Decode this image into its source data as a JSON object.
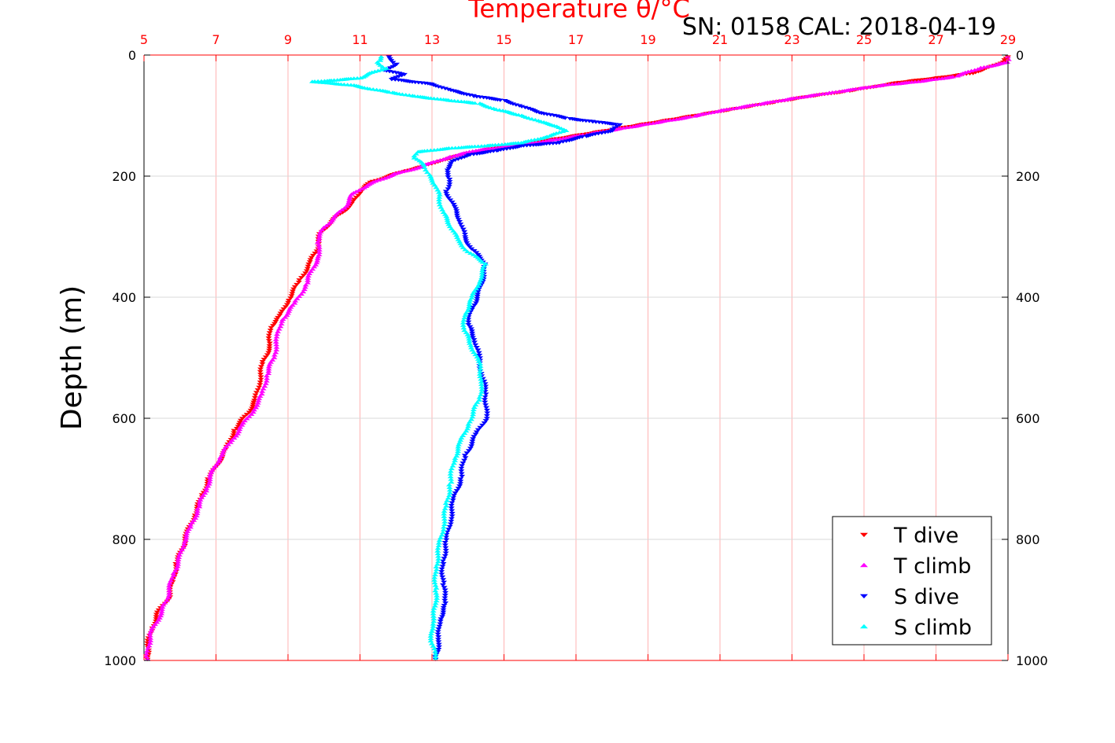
{
  "chart_data": {
    "type": "scatter",
    "title": "Temperature θ/°C",
    "subtitle": "SN: 0158  CAL: 2018-04-19",
    "xlabel": "",
    "ylabel": "Depth (m)",
    "xlim": [
      5,
      29
    ],
    "ylim": [
      0,
      1000
    ],
    "y_reversed": true,
    "x_axis_position": "top",
    "right_axis": true,
    "grid": true,
    "legend_position": "bottom-right",
    "xticks": [
      "5",
      "7",
      "9",
      "11",
      "13",
      "15",
      "17",
      "19",
      "21",
      "23",
      "25",
      "27",
      "29"
    ],
    "yticks": [
      "0",
      "200",
      "400",
      "600",
      "800",
      "1000"
    ],
    "colors": {
      "axis": "#ff0000",
      "grid_x": "#ffb3b3",
      "grid_y": "#d9d9d9"
    },
    "series": [
      {
        "name": "T dive",
        "color": "#ff0000",
        "marker": "triangle-down",
        "points": [
          [
            29.0,
            3
          ],
          [
            28.9,
            10
          ],
          [
            28.5,
            20
          ],
          [
            28.0,
            30
          ],
          [
            27.0,
            38
          ],
          [
            26.0,
            45
          ],
          [
            25.3,
            52
          ],
          [
            24.5,
            60
          ],
          [
            23.5,
            68
          ],
          [
            22.5,
            78
          ],
          [
            21.5,
            88
          ],
          [
            20.5,
            98
          ],
          [
            19.5,
            108
          ],
          [
            18.5,
            118
          ],
          [
            17.5,
            128
          ],
          [
            16.5,
            138
          ],
          [
            15.5,
            148
          ],
          [
            14.5,
            156
          ],
          [
            13.8,
            165
          ],
          [
            13.2,
            175
          ],
          [
            12.7,
            185
          ],
          [
            12.2,
            192
          ],
          [
            11.8,
            200
          ],
          [
            11.3,
            210
          ],
          [
            11.0,
            225
          ],
          [
            10.8,
            245
          ],
          [
            10.5,
            260
          ],
          [
            10.2,
            275
          ],
          [
            9.9,
            295
          ],
          [
            9.8,
            320
          ],
          [
            9.6,
            345
          ],
          [
            9.3,
            375
          ],
          [
            9.0,
            405
          ],
          [
            8.8,
            430
          ],
          [
            8.5,
            450
          ],
          [
            8.5,
            480
          ],
          [
            8.3,
            510
          ],
          [
            8.2,
            540
          ],
          [
            8.1,
            570
          ],
          [
            7.9,
            590
          ],
          [
            7.5,
            620
          ],
          [
            7.3,
            650
          ],
          [
            7.1,
            670
          ],
          [
            6.8,
            700
          ],
          [
            6.6,
            730
          ],
          [
            6.4,
            760
          ],
          [
            6.2,
            790
          ],
          [
            6.1,
            810
          ],
          [
            5.9,
            840
          ],
          [
            5.8,
            870
          ],
          [
            5.7,
            895
          ],
          [
            5.4,
            920
          ],
          [
            5.2,
            950
          ],
          [
            5.1,
            975
          ],
          [
            5.1,
            998
          ]
        ]
      },
      {
        "name": "T climb",
        "color": "#ff00ff",
        "marker": "triangle-up",
        "points": [
          [
            29.0,
            3
          ],
          [
            29.0,
            12
          ],
          [
            28.2,
            22
          ],
          [
            27.5,
            36
          ],
          [
            26.5,
            44
          ],
          [
            25.5,
            50
          ],
          [
            24.8,
            56
          ],
          [
            24.0,
            63
          ],
          [
            23.0,
            72
          ],
          [
            22.0,
            82
          ],
          [
            21.0,
            92
          ],
          [
            20.2,
            102
          ],
          [
            19.2,
            112
          ],
          [
            18.2,
            122
          ],
          [
            17.2,
            132
          ],
          [
            16.2,
            142
          ],
          [
            15.2,
            150
          ],
          [
            14.2,
            158
          ],
          [
            13.5,
            168
          ],
          [
            13.0,
            178
          ],
          [
            12.5,
            188
          ],
          [
            12.0,
            196
          ],
          [
            11.6,
            205
          ],
          [
            11.2,
            215
          ],
          [
            10.8,
            230
          ],
          [
            10.6,
            250
          ],
          [
            10.3,
            268
          ],
          [
            10.0,
            285
          ],
          [
            9.8,
            310
          ],
          [
            9.9,
            330
          ],
          [
            9.7,
            350
          ],
          [
            9.5,
            380
          ],
          [
            9.2,
            410
          ],
          [
            8.8,
            440
          ],
          [
            8.7,
            470
          ],
          [
            8.6,
            500
          ],
          [
            8.4,
            530
          ],
          [
            8.3,
            560
          ],
          [
            8.0,
            590
          ],
          [
            7.7,
            615
          ],
          [
            7.4,
            640
          ],
          [
            7.1,
            665
          ],
          [
            6.9,
            690
          ],
          [
            6.7,
            720
          ],
          [
            6.5,
            750
          ],
          [
            6.3,
            780
          ],
          [
            6.1,
            805
          ],
          [
            6.0,
            830
          ],
          [
            5.8,
            860
          ],
          [
            5.7,
            885
          ],
          [
            5.6,
            905
          ],
          [
            5.4,
            930
          ],
          [
            5.2,
            955
          ],
          [
            5.1,
            980
          ],
          [
            5.1,
            998
          ]
        ]
      },
      {
        "name": "S dive",
        "color": "#0000ff",
        "marker": "triangle-down",
        "points": [
          [
            11.8,
            3
          ],
          [
            12.0,
            15
          ],
          [
            11.7,
            25
          ],
          [
            12.2,
            32
          ],
          [
            11.9,
            40
          ],
          [
            13.0,
            48
          ],
          [
            13.5,
            58
          ],
          [
            14.2,
            68
          ],
          [
            15.0,
            75
          ],
          [
            15.5,
            85
          ],
          [
            16.0,
            95
          ],
          [
            16.8,
            105
          ],
          [
            17.5,
            110
          ],
          [
            18.2,
            115
          ],
          [
            18.0,
            125
          ],
          [
            17.2,
            135
          ],
          [
            16.5,
            145
          ],
          [
            15.5,
            150
          ],
          [
            14.8,
            158
          ],
          [
            14.0,
            165
          ],
          [
            13.6,
            175
          ],
          [
            13.4,
            190
          ],
          [
            13.5,
            205
          ],
          [
            13.4,
            225
          ],
          [
            13.6,
            250
          ],
          [
            13.8,
            275
          ],
          [
            13.9,
            300
          ],
          [
            14.1,
            320
          ],
          [
            14.5,
            345
          ],
          [
            14.4,
            370
          ],
          [
            14.3,
            395
          ],
          [
            14.1,
            420
          ],
          [
            14.0,
            445
          ],
          [
            14.2,
            470
          ],
          [
            14.3,
            500
          ],
          [
            14.4,
            530
          ],
          [
            14.5,
            560
          ],
          [
            14.5,
            600
          ],
          [
            14.2,
            630
          ],
          [
            13.9,
            665
          ],
          [
            13.8,
            700
          ],
          [
            13.6,
            735
          ],
          [
            13.5,
            770
          ],
          [
            13.4,
            805
          ],
          [
            13.3,
            840
          ],
          [
            13.3,
            875
          ],
          [
            13.4,
            905
          ],
          [
            13.2,
            935
          ],
          [
            13.2,
            965
          ],
          [
            13.1,
            998
          ]
        ]
      },
      {
        "name": "S climb",
        "color": "#00ffff",
        "marker": "triangle-up",
        "points": [
          [
            11.6,
            3
          ],
          [
            11.5,
            12
          ],
          [
            11.7,
            22
          ],
          [
            11.3,
            30
          ],
          [
            11.0,
            38
          ],
          [
            10.2,
            42
          ],
          [
            9.7,
            44
          ],
          [
            10.8,
            50
          ],
          [
            11.3,
            56
          ],
          [
            11.9,
            62
          ],
          [
            12.5,
            68
          ],
          [
            13.5,
            75
          ],
          [
            14.3,
            80
          ],
          [
            14.8,
            90
          ],
          [
            15.5,
            100
          ],
          [
            16.0,
            110
          ],
          [
            16.5,
            118
          ],
          [
            16.7,
            125
          ],
          [
            16.2,
            135
          ],
          [
            15.5,
            145
          ],
          [
            14.5,
            150
          ],
          [
            13.5,
            154
          ],
          [
            12.6,
            160
          ],
          [
            12.5,
            170
          ],
          [
            12.8,
            182
          ],
          [
            12.9,
            198
          ],
          [
            13.1,
            215
          ],
          [
            13.2,
            235
          ],
          [
            13.3,
            260
          ],
          [
            13.5,
            280
          ],
          [
            13.7,
            305
          ],
          [
            14.0,
            325
          ],
          [
            14.5,
            345
          ],
          [
            14.3,
            375
          ],
          [
            14.1,
            405
          ],
          [
            13.9,
            430
          ],
          [
            13.9,
            455
          ],
          [
            14.1,
            480
          ],
          [
            14.3,
            510
          ],
          [
            14.4,
            540
          ],
          [
            14.3,
            570
          ],
          [
            14.0,
            610
          ],
          [
            13.8,
            640
          ],
          [
            13.6,
            670
          ],
          [
            13.5,
            710
          ],
          [
            13.4,
            745
          ],
          [
            13.3,
            780
          ],
          [
            13.2,
            815
          ],
          [
            13.1,
            850
          ],
          [
            13.1,
            885
          ],
          [
            13.1,
            910
          ],
          [
            13.0,
            940
          ],
          [
            13.0,
            968
          ],
          [
            13.1,
            998
          ]
        ]
      }
    ]
  }
}
